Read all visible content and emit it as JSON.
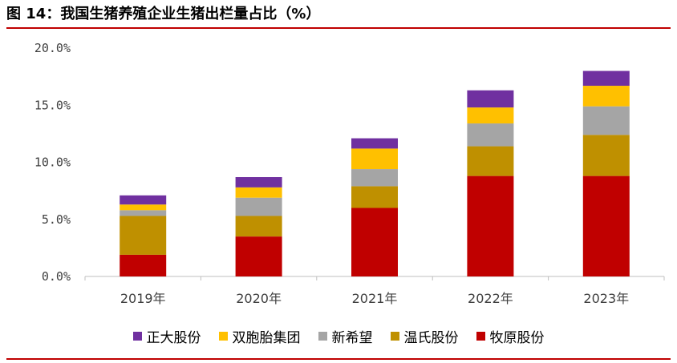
{
  "title": "图 14：我国生猪养殖企业生猪出栏量占比（%）",
  "chart_data": {
    "type": "bar",
    "stacked": true,
    "categories": [
      "2019年",
      "2020年",
      "2021年",
      "2022年",
      "2023年"
    ],
    "ylim": [
      0,
      20
    ],
    "yticks": [
      0,
      5,
      10,
      15,
      20
    ],
    "ytick_labels": [
      "0.0%",
      "5.0%",
      "10.0%",
      "15.0%",
      "20.0%"
    ],
    "legend_position": "bottom",
    "series": [
      {
        "name": "牧原股份",
        "color": "#c00000",
        "values": [
          1.9,
          3.5,
          6.0,
          8.8,
          8.8
        ]
      },
      {
        "name": "温氏股份",
        "color": "#bf9000",
        "values": [
          3.4,
          1.8,
          1.9,
          2.6,
          3.6
        ]
      },
      {
        "name": "新希望",
        "color": "#a5a5a5",
        "values": [
          0.5,
          1.6,
          1.5,
          2.0,
          2.5
        ]
      },
      {
        "name": "双胞胎集团",
        "color": "#ffc000",
        "values": [
          0.5,
          0.9,
          1.8,
          1.4,
          1.8
        ]
      },
      {
        "name": "正大股份",
        "color": "#7030a0",
        "values": [
          0.8,
          0.9,
          0.9,
          1.5,
          1.3
        ]
      }
    ],
    "legend_order": [
      "正大股份",
      "双胞胎集团",
      "新希望",
      "温氏股份",
      "牧原股份"
    ]
  }
}
